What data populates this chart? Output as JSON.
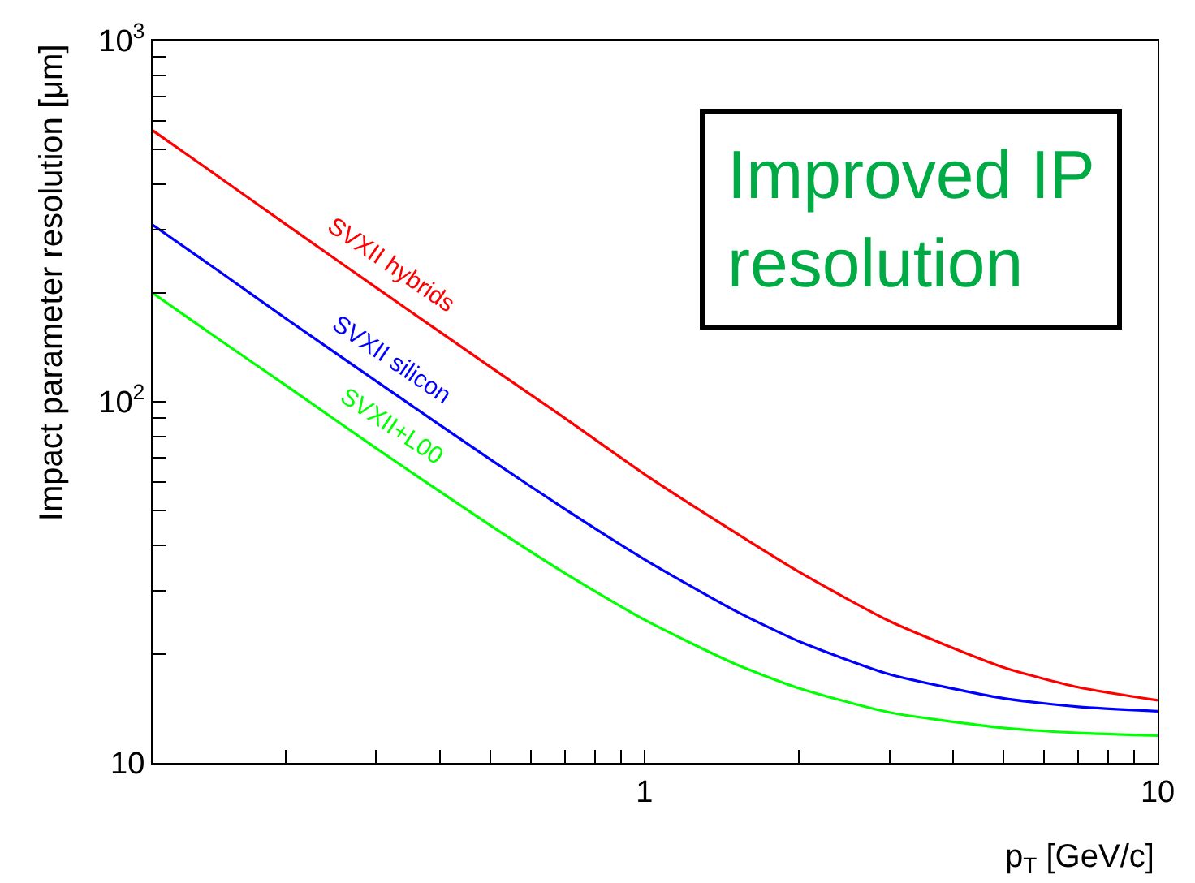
{
  "chart_data": {
    "type": "line",
    "xlabel": "p$_{T}$ [GeV/c]",
    "ylabel": "Impact parameter resolution [μm]",
    "annotations": [
      "Improved IP resolution"
    ],
    "x": [
      0.11,
      0.15,
      0.2,
      0.3,
      0.5,
      0.7,
      1,
      1.5,
      2,
      3,
      5,
      7,
      10
    ],
    "series": [
      {
        "name": "SVXII hybrids",
        "color": "#ff0000",
        "values": [
          564,
          414,
          310,
          207,
          125,
          90,
          63,
          43.5,
          33.8,
          24.7,
          18.4,
          16.2,
          14.9
        ]
      },
      {
        "name": "SVXII silicon",
        "color": "#0000ff",
        "values": [
          309,
          227,
          170,
          114,
          69.3,
          50.4,
          36.6,
          26.4,
          21.7,
          17.6,
          15.1,
          14.3,
          13.9
        ]
      },
      {
        "name": "SVXII+L00",
        "color": "#00ff00",
        "values": [
          200,
          147,
          111,
          74.3,
          45.5,
          33.5,
          24.9,
          18.8,
          16.1,
          13.8,
          12.5,
          12.1,
          11.9
        ]
      }
    ],
    "log": "xy",
    "xlim": [
      0.11,
      10
    ],
    "ylim": [
      10,
      1000
    ],
    "xticks": [
      {
        "value": 0.2,
        "label": null
      },
      {
        "value": 0.3,
        "label": null
      },
      {
        "value": 0.4,
        "label": null
      },
      {
        "value": 0.5,
        "label": null
      },
      {
        "value": 0.6,
        "label": null
      },
      {
        "value": 0.7,
        "label": null
      },
      {
        "value": 0.8,
        "label": null
      },
      {
        "value": 0.9,
        "label": null
      },
      1,
      {
        "value": 2,
        "label": null
      },
      {
        "value": 3,
        "label": null
      },
      {
        "value": 4,
        "label": null
      },
      {
        "value": 5,
        "label": null
      },
      {
        "value": 6,
        "label": null
      },
      {
        "value": 7,
        "label": null
      },
      {
        "value": 8,
        "label": null
      },
      {
        "value": 9,
        "label": null
      },
      10
    ],
    "yticks": [
      10,
      {
        "value": 20,
        "label": null
      },
      {
        "value": 30,
        "label": null
      },
      {
        "value": 40,
        "label": null
      },
      {
        "value": 50,
        "label": null
      },
      {
        "value": 60,
        "label": null
      },
      {
        "value": 70,
        "label": null
      },
      {
        "value": 80,
        "label": null
      },
      {
        "value": 90,
        "label": null
      },
      {
        "value": 100,
        "label": "10$^{2}$"
      },
      {
        "value": 200,
        "label": null
      },
      {
        "value": 300,
        "label": null
      },
      {
        "value": 400,
        "label": null
      },
      {
        "value": 500,
        "label": null
      },
      {
        "value": 600,
        "label": null
      },
      {
        "value": 700,
        "label": null
      },
      {
        "value": 800,
        "label": null
      },
      {
        "value": 900,
        "label": null
      },
      {
        "value": 1000,
        "label": "10$^{3}$"
      }
    ],
    "legend": false,
    "marker": "none",
    "line_style": "solid"
  }
}
